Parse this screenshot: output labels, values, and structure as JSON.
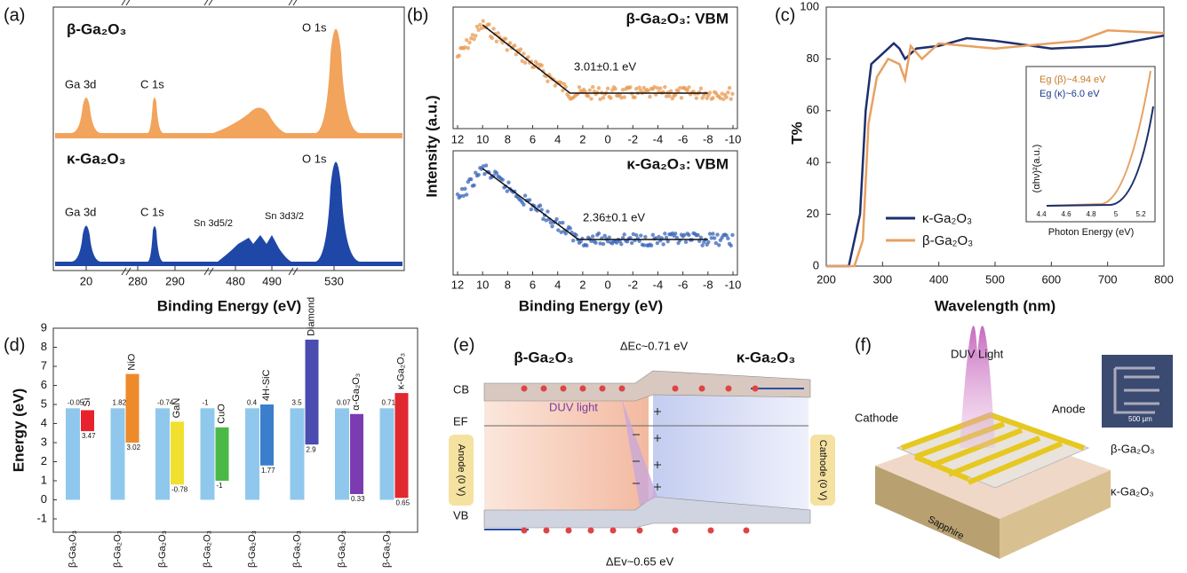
{
  "panel_a": {
    "label": "(a)",
    "top": {
      "sample": "β-Ga₂O₃",
      "peaks": [
        "Ga 3d",
        "C 1s",
        "O 1s"
      ]
    },
    "bottom": {
      "sample": "κ-Ga₂O₃",
      "peaks": [
        "Ga 3d",
        "C 1s",
        "Sn 3d5/2",
        "Sn 3d3/2",
        "O 1s"
      ]
    },
    "xticks": [
      20,
      280,
      290,
      480,
      490,
      530
    ],
    "xlabel": "Binding Energy (eV)"
  },
  "panel_b": {
    "label": "(b)",
    "ylabel": "Intensity (a.u.)",
    "xlabel": "Binding Energy (eV)",
    "xlim": [
      12,
      -10
    ],
    "xticks": [
      12,
      10,
      8,
      6,
      4,
      2,
      0,
      -2,
      -4,
      -6,
      -8,
      -10
    ],
    "plots": [
      {
        "title": "β-Ga₂O₃: VBM",
        "annotation": "3.01±0.1 eV",
        "onset": 3.01,
        "color": "#e89a52"
      },
      {
        "title": "κ-Ga₂O₃: VBM",
        "annotation": "2.36±0.1 eV",
        "onset": 2.36,
        "color": "#3a64b8"
      }
    ]
  },
  "panel_c": {
    "type": "line",
    "label": "(c)",
    "xlabel": "Wavelength (nm)",
    "ylabel": "T%",
    "xlim": [
      200,
      800
    ],
    "ylim": [
      0,
      100
    ],
    "xticks": [
      200,
      300,
      400,
      500,
      600,
      700,
      800
    ],
    "yticks": [
      0,
      20,
      40,
      60,
      80,
      100
    ],
    "series": [
      {
        "name": "κ-Ga₂O₃",
        "color": "#1c2f6e",
        "x": [
          200,
          240,
          260,
          270,
          280,
          300,
          320,
          330,
          340,
          360,
          400,
          450,
          500,
          600,
          700,
          800
        ],
        "values": [
          0,
          0,
          20,
          60,
          78,
          82,
          86,
          84,
          80,
          84,
          85,
          88,
          87,
          84,
          85,
          89
        ]
      },
      {
        "name": "β-Ga₂O₃",
        "color": "#e8a060",
        "x": [
          200,
          250,
          265,
          275,
          290,
          310,
          330,
          340,
          350,
          370,
          400,
          500,
          600,
          650,
          700,
          800
        ],
        "values": [
          0,
          0,
          10,
          55,
          73,
          80,
          78,
          72,
          85,
          80,
          86,
          84,
          86,
          87,
          91,
          90
        ]
      }
    ],
    "inset": {
      "ylabel": "(αhν)²(a.u.)",
      "xlabel": "Photon Energy (eV)",
      "xticks": [
        4.4,
        4.6,
        4.8,
        5.0,
        5.2
      ],
      "notes": [
        "Eg (β)~4.94 eV",
        "Eg (κ)~6.0 eV"
      ]
    }
  },
  "panel_d": {
    "label": "(d)",
    "ylabel": "Energy (eV)",
    "ylim": [
      -1,
      9
    ],
    "yticks": [
      -1,
      0,
      1,
      2,
      3,
      4,
      5,
      6,
      7,
      8,
      9
    ],
    "reference": {
      "name": "β-Ga₂O₃",
      "range": [
        0,
        4.8
      ],
      "color": "#8fc8ec"
    },
    "partners": [
      {
        "name": "Si",
        "range": [
          3.6,
          4.7
        ],
        "color": "#e8222c",
        "offsets": [
          "-0.05",
          "3.47"
        ]
      },
      {
        "name": "NiO",
        "range": [
          3.0,
          6.6
        ],
        "color": "#ee8a2c",
        "offsets": [
          "1.82",
          "3.02"
        ]
      },
      {
        "name": "GaN",
        "range": [
          0.8,
          4.1
        ],
        "color": "#f2e030",
        "offsets": [
          "-0.74",
          "-0.78"
        ]
      },
      {
        "name": "CuO",
        "range": [
          1.0,
          3.8
        ],
        "color": "#4cb848",
        "offsets": [
          "-1",
          "-1"
        ]
      },
      {
        "name": "4H-SiC",
        "range": [
          1.8,
          5.0
        ],
        "color": "#3b7fcc",
        "offsets": [
          "0.4",
          "1.77"
        ]
      },
      {
        "name": "Diamond",
        "range": [
          2.9,
          8.4
        ],
        "color": "#4a4cb0",
        "offsets": [
          "3.5",
          "2.9"
        ]
      },
      {
        "name": "α-Ga₂O₃",
        "range": [
          0.3,
          4.5
        ],
        "color": "#7a3cb0",
        "offsets": [
          "0.07",
          "0.33"
        ]
      },
      {
        "name": "κ-Ga₂O₃",
        "range": [
          0.1,
          5.6
        ],
        "color": "#e02830",
        "offsets": [
          "0.71",
          "0.65"
        ]
      }
    ]
  },
  "panel_e": {
    "label": "(e)",
    "left": "β-Ga₂O₃",
    "right": "κ-Ga₂O₃",
    "conduction_offset": "ΔEc~0.71 eV",
    "valence_offset": "ΔEv~0.65 eV",
    "cb": "CB",
    "vb": "VB",
    "fermi": "EF",
    "light": "DUV light",
    "anode": "Anode (0 V)",
    "cathode": "Cathode (0 V)"
  },
  "panel_f": {
    "label": "(f)",
    "light": "DUV Light",
    "cathode": "Cathode",
    "anode": "Anode",
    "layer_top": "β-Ga₂O₃",
    "layer_bottom": "κ-Ga₂O₃",
    "substrate": "Sapphire",
    "scale": "500 μm"
  }
}
